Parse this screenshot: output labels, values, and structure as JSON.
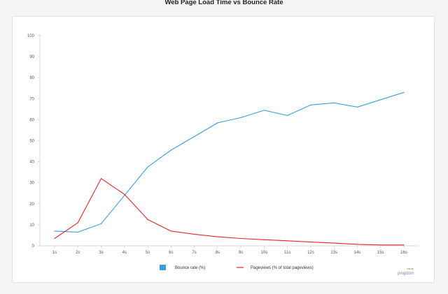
{
  "chart_data": {
    "type": "line",
    "title": "Web Page Load Time vs Bounce Rate",
    "xlabel": "",
    "ylabel": "",
    "categories": [
      "1s",
      "2s",
      "3s",
      "4s",
      "5s",
      "6s",
      "7s",
      "8s",
      "9s",
      "10s",
      "11s",
      "12s",
      "13s",
      "14s",
      "15s",
      "16s"
    ],
    "ylim": [
      0,
      100
    ],
    "yticks": [
      0,
      10,
      20,
      30,
      40,
      50,
      60,
      70,
      80,
      90,
      100
    ],
    "grid": false,
    "legend_position": "bottom",
    "series": [
      {
        "name": "Bounce rate  (%)",
        "color": "#3a9fd6",
        "legend_marker": "square",
        "values": [
          7,
          6.5,
          10.5,
          24,
          37.5,
          45.5,
          52,
          58.5,
          61,
          64.5,
          62,
          67,
          68,
          66,
          69.5,
          73
        ]
      },
      {
        "name": "Pageviews (% of total pageviews)",
        "color": "#e0252b",
        "legend_marker": "line",
        "values": [
          3.5,
          11,
          32,
          24.5,
          12.5,
          7,
          5.5,
          4.3,
          3.5,
          2.9,
          2.4,
          1.8,
          1.3,
          0.7,
          0.4,
          0.4
        ]
      }
    ]
  },
  "brand_logo_text": "pingdom"
}
